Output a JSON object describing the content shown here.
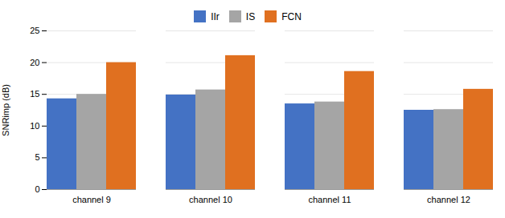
{
  "chart_data": {
    "type": "bar",
    "ylabel": "SNRimp (dB)",
    "categories": [
      "channel 9",
      "channel 10",
      "channel 11",
      "channel 12"
    ],
    "series": [
      {
        "name": "IIr",
        "color": "#4472C4",
        "values": [
          14.3,
          14.9,
          13.5,
          12.5
        ]
      },
      {
        "name": "IS",
        "color": "#A5A5A5",
        "values": [
          15.0,
          15.7,
          13.8,
          12.6
        ]
      },
      {
        "name": "FCN",
        "color": "#E07020",
        "values": [
          20.0,
          21.1,
          18.6,
          15.8
        ]
      }
    ],
    "ylim": [
      0,
      25
    ],
    "yticks": [
      0,
      5,
      10,
      15,
      20,
      25
    ],
    "grid": true,
    "legend": "top"
  }
}
